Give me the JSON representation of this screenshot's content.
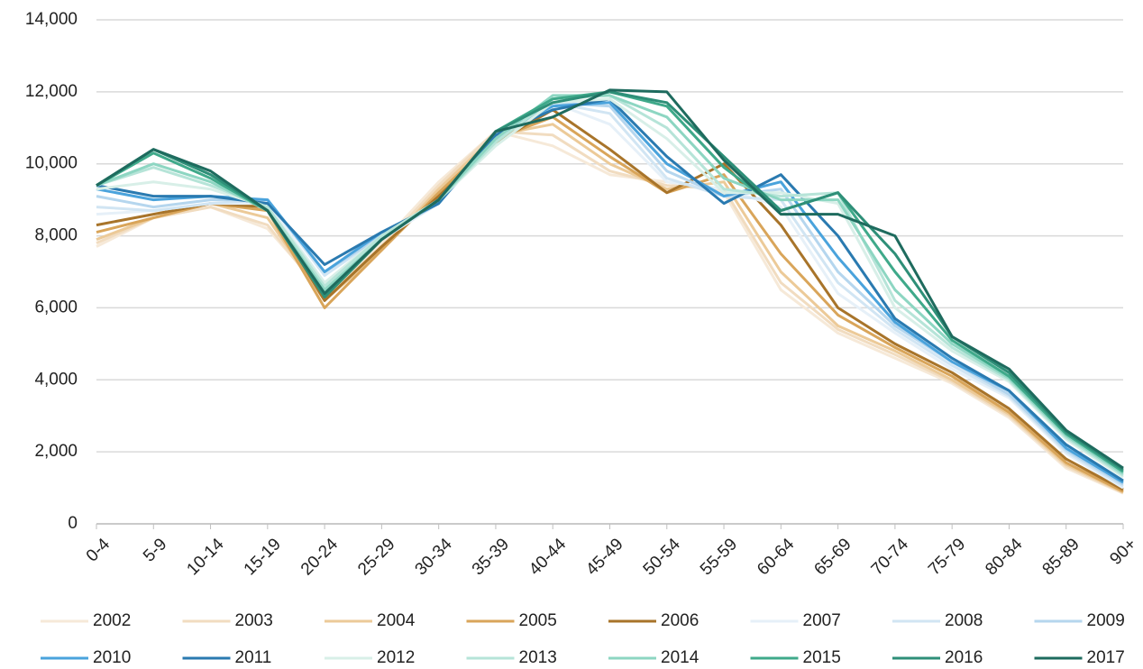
{
  "chart_data": {
    "type": "line",
    "categories": [
      "0-4",
      "5-9",
      "10-14",
      "15-19",
      "20-24",
      "25-29",
      "30-34",
      "35-39",
      "40-44",
      "45-49",
      "50-54",
      "55-59",
      "60-64",
      "65-69",
      "70-74",
      "75-79",
      "80-84",
      "85-89",
      "90+"
    ],
    "ylim": [
      0,
      14000
    ],
    "yticks": [
      0,
      {
        "value": 2000,
        "label": "2,000"
      },
      {
        "value": 4000,
        "label": "4,000"
      },
      {
        "value": 6000,
        "label": "6,000"
      },
      {
        "value": 8000,
        "label": "8,000"
      },
      {
        "value": 10000,
        "label": "10,000"
      },
      {
        "value": 12000,
        "label": "12,000"
      },
      {
        "value": 14000,
        "label": "14,000"
      }
    ],
    "grid": true,
    "legend": "bottom",
    "series": [
      {
        "name": "2002",
        "color": "#f6e9d8",
        "values": [
          7700,
          8500,
          8800,
          8200,
          6400,
          7800,
          9500,
          10900,
          10500,
          9700,
          9500,
          9200,
          6500,
          5300,
          4600,
          3900,
          2950,
          1550,
          850
        ]
      },
      {
        "name": "2003",
        "color": "#f1dcc0",
        "values": [
          7800,
          8500,
          8800,
          8300,
          6300,
          7700,
          9400,
          10900,
          10800,
          9800,
          9400,
          9300,
          6700,
          5400,
          4700,
          3950,
          3000,
          1600,
          860
        ]
      },
      {
        "name": "2004",
        "color": "#ecca98",
        "values": [
          7900,
          8500,
          8900,
          8500,
          6200,
          7600,
          9300,
          10800,
          11100,
          10000,
          9300,
          9500,
          7000,
          5500,
          4800,
          4000,
          3050,
          1650,
          880
        ]
      },
      {
        "name": "2005",
        "color": "#d9a55a",
        "values": [
          8100,
          8500,
          8900,
          8700,
          6000,
          7600,
          9200,
          10700,
          11300,
          10200,
          9200,
          9700,
          7500,
          5800,
          4900,
          4100,
          3100,
          1700,
          900
        ]
      },
      {
        "name": "2006",
        "color": "#a8742a",
        "values": [
          8300,
          8600,
          8900,
          8800,
          6200,
          7700,
          9100,
          10600,
          11500,
          10400,
          9200,
          10000,
          8300,
          6000,
          5000,
          4200,
          3200,
          1800,
          950
        ]
      },
      {
        "name": "2007",
        "color": "#e6f0f8",
        "values": [
          8600,
          8700,
          8900,
          8900,
          6700,
          7900,
          8900,
          10900,
          11700,
          11100,
          9500,
          9300,
          8800,
          6400,
          5300,
          4300,
          3500,
          1950,
          1000
        ]
      },
      {
        "name": "2008",
        "color": "#d1e5f3",
        "values": [
          8800,
          8700,
          8900,
          9000,
          6900,
          8000,
          8900,
          10900,
          11700,
          11400,
          9600,
          9100,
          9000,
          6700,
          5400,
          4400,
          3550,
          2000,
          1050
        ]
      },
      {
        "name": "2009",
        "color": "#b5d6ee",
        "values": [
          9100,
          8800,
          9000,
          9000,
          7000,
          8000,
          8900,
          10700,
          11700,
          11600,
          9800,
          9100,
          9300,
          7000,
          5500,
          4500,
          3600,
          2050,
          1100
        ]
      },
      {
        "name": "2010",
        "color": "#4aa3dc",
        "values": [
          9300,
          9000,
          9100,
          9000,
          7000,
          8100,
          8900,
          10800,
          11600,
          11700,
          10000,
          9100,
          9500,
          7400,
          5600,
          4500,
          3700,
          2100,
          1150
        ]
      },
      {
        "name": "2011",
        "color": "#2a7ab0",
        "values": [
          9400,
          9100,
          9100,
          8900,
          7200,
          8100,
          8900,
          10800,
          11500,
          11800,
          10200,
          8900,
          9700,
          8000,
          5700,
          4600,
          3700,
          2200,
          1200
        ]
      },
      {
        "name": "2012",
        "color": "#d8efe8",
        "values": [
          9300,
          9500,
          9300,
          8800,
          6700,
          8000,
          9000,
          10500,
          11700,
          11800,
          10700,
          9200,
          9200,
          8900,
          6000,
          4800,
          3950,
          2350,
          1300
        ]
      },
      {
        "name": "2013",
        "color": "#b6e4d8",
        "values": [
          9400,
          9900,
          9400,
          8800,
          6600,
          8000,
          9000,
          10600,
          11800,
          11900,
          11000,
          9300,
          9100,
          9200,
          6200,
          4900,
          4000,
          2400,
          1350
        ]
      },
      {
        "name": "2014",
        "color": "#8dd6c2",
        "values": [
          9400,
          10000,
          9500,
          8700,
          6500,
          7900,
          9000,
          10700,
          11900,
          11900,
          11300,
          9600,
          9000,
          9000,
          6500,
          5000,
          4050,
          2450,
          1400
        ]
      },
      {
        "name": "2015",
        "color": "#3fa98a",
        "values": [
          9400,
          10300,
          9600,
          8700,
          6300,
          7900,
          9000,
          10900,
          11800,
          12000,
          11600,
          9900,
          8700,
          9200,
          7000,
          5100,
          4100,
          2500,
          1450
        ]
      },
      {
        "name": "2016",
        "color": "#2e8f78",
        "values": [
          9400,
          10400,
          9700,
          8700,
          6300,
          7900,
          9000,
          10900,
          11700,
          12000,
          11700,
          10200,
          8700,
          9200,
          7500,
          5200,
          4200,
          2550,
          1500
        ]
      },
      {
        "name": "2017",
        "color": "#1e6b5e",
        "values": [
          9400,
          10400,
          9800,
          8700,
          6400,
          7900,
          9000,
          10900,
          11300,
          12050,
          12000,
          10100,
          8600,
          8600,
          8000,
          5200,
          4300,
          2600,
          1550
        ]
      }
    ]
  }
}
